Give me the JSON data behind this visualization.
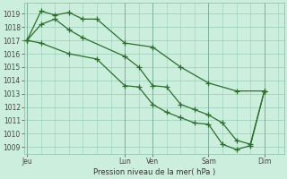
{
  "background_color": "#cceedd",
  "grid_color": "#99ccbb",
  "line_color": "#2d6e2d",
  "marker_color": "#2d6e2d",
  "xlabel": "Pression niveau de la mer( hPa )",
  "xtick_labels": [
    "Jeu",
    "Lun",
    "Ven",
    "Sam",
    "Dim"
  ],
  "xtick_positions": [
    0,
    3.5,
    4.5,
    6.5,
    8.5
  ],
  "day_lines": [
    0,
    3.5,
    4.5,
    6.5,
    8.5
  ],
  "ylim": [
    1008.5,
    1019.8
  ],
  "xlim": [
    -0.1,
    9.2
  ],
  "yticks": [
    1009,
    1010,
    1011,
    1012,
    1013,
    1014,
    1015,
    1016,
    1017,
    1018,
    1019
  ],
  "series1_x": [
    0,
    0.5,
    1.0,
    1.5,
    2.0,
    2.5,
    3.5,
    4.5,
    5.5,
    6.5,
    7.5,
    8.5
  ],
  "series1_y": [
    1017.0,
    1019.2,
    1018.9,
    1019.1,
    1018.6,
    1018.6,
    1016.8,
    1016.5,
    1015.0,
    1013.8,
    1013.2,
    1013.2
  ],
  "series2_x": [
    0,
    0.5,
    1.0,
    1.5,
    2.0,
    3.5,
    4.0,
    4.5,
    5.0,
    5.5,
    6.0,
    6.5,
    7.0,
    7.5,
    8.0,
    8.5
  ],
  "series2_y": [
    1017.0,
    1018.2,
    1018.6,
    1017.8,
    1017.2,
    1015.8,
    1015.0,
    1013.6,
    1013.5,
    1012.2,
    1011.8,
    1011.4,
    1010.8,
    1009.5,
    1009.2,
    1013.2
  ],
  "series3_x": [
    0,
    0.5,
    1.5,
    2.5,
    3.5,
    4.0,
    4.5,
    5.0,
    5.5,
    6.0,
    6.5,
    7.0,
    7.5,
    8.0,
    8.5
  ],
  "series3_y": [
    1017.0,
    1016.8,
    1016.0,
    1015.6,
    1013.6,
    1013.5,
    1012.2,
    1011.6,
    1011.2,
    1010.8,
    1010.7,
    1009.2,
    1008.8,
    1009.1,
    1013.2
  ]
}
